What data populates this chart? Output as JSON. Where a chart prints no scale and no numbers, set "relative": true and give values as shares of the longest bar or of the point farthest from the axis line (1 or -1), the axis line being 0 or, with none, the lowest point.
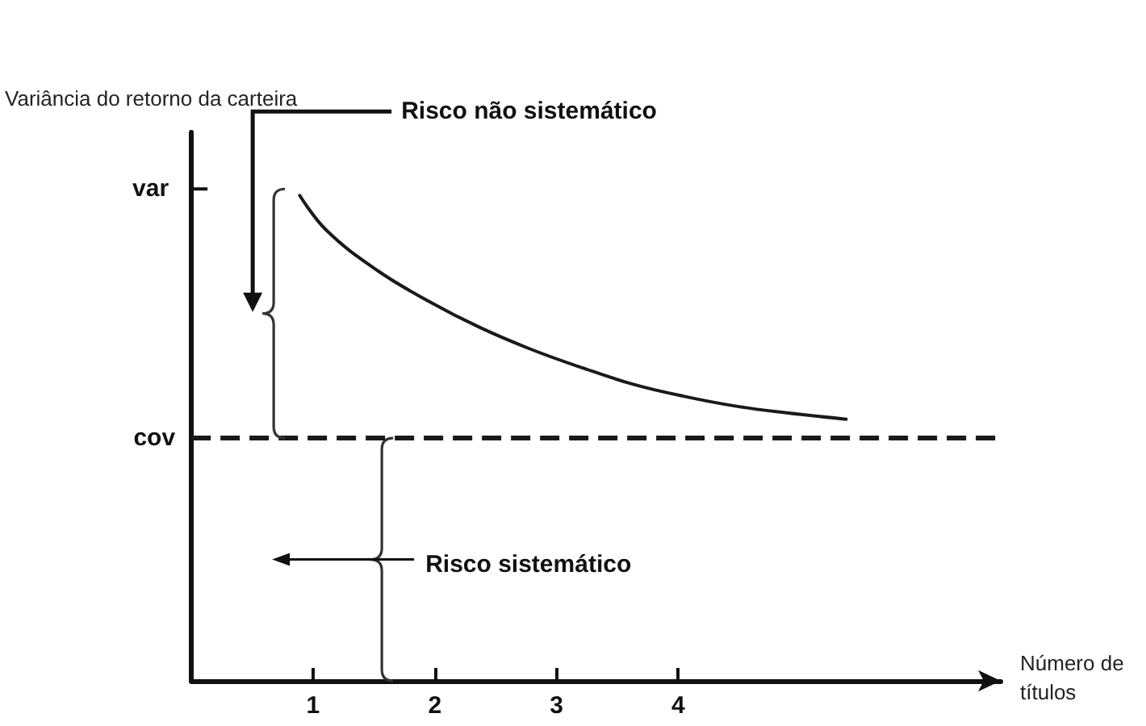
{
  "chart_data": {
    "type": "line",
    "relative": true,
    "xlabel": "Número de títulos",
    "ylabel": "Variância do retorno da carteira",
    "x": [
      0.89,
      1.11,
      1.53,
      1.95,
      2.37,
      2.79,
      3.21,
      3.63,
      4.05,
      4.47,
      4.89,
      5.38
    ],
    "series": [
      {
        "color": "#1a1a1a",
        "values": [
          1,
          0.928,
          0.845,
          0.782,
          0.728,
          0.683,
          0.645,
          0.611,
          0.586,
          0.566,
          0.552,
          0.539
        ]
      }
    ],
    "xlim": [
      0,
      6.65
    ],
    "xticks": [
      1,
      2,
      3,
      4
    ],
    "ref_lines": [
      {
        "axis": "y",
        "value": 0.5,
        "label": "cov",
        "color": "#1a1a1a",
        "line_style": "dashed"
      }
    ],
    "annotations": [
      "Risco não sistemático",
      "Risco sistemático",
      "var"
    ],
    "grid": false,
    "marker": "none",
    "line_style": "solid"
  }
}
